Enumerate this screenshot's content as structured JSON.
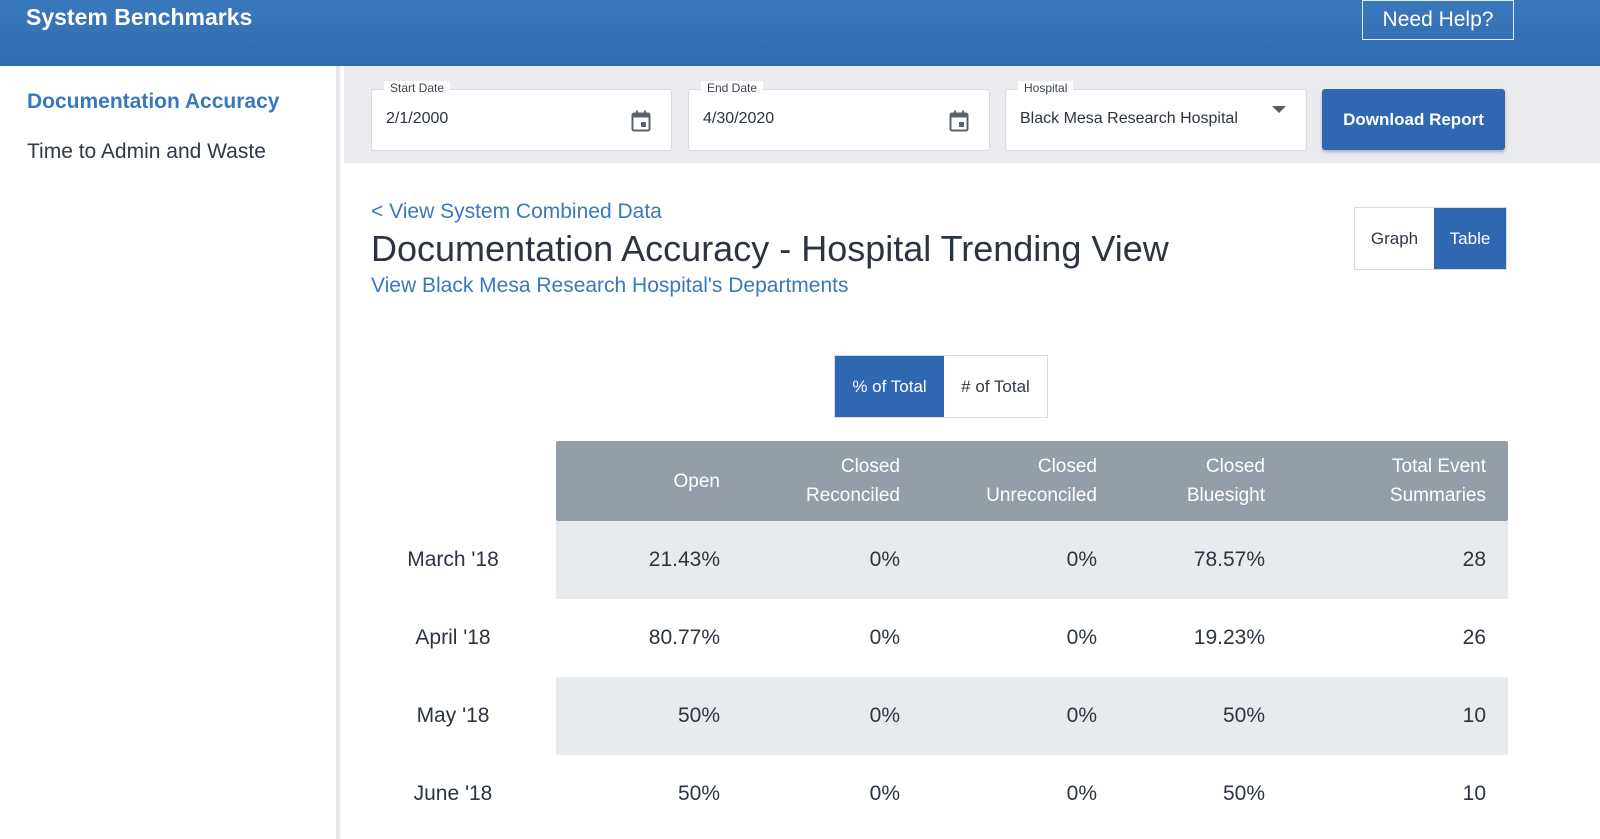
{
  "header": {
    "title": "System Benchmarks",
    "help_label": "Need Help?"
  },
  "sidebar": {
    "items": [
      {
        "label": "Documentation Accuracy",
        "active": true
      },
      {
        "label": "Time to Admin and Waste",
        "active": false
      }
    ]
  },
  "filters": {
    "start_date": {
      "label": "Start Date",
      "value": "2/1/2000",
      "icon": "calendar-icon"
    },
    "end_date": {
      "label": "End Date",
      "value": "4/30/2020",
      "icon": "calendar-icon"
    },
    "hospital": {
      "label": "Hospital",
      "value": "Black Mesa Research Hospital",
      "icon": "dropdown-caret-icon"
    },
    "download_label": "Download Report"
  },
  "main": {
    "back_link": "< View System Combined Data",
    "title": "Documentation Accuracy - Hospital Trending View",
    "departments_link": "View Black Mesa Research Hospital's Departments",
    "view_toggle": {
      "graph": "Graph",
      "table": "Table",
      "selected": "Table"
    },
    "metric_toggle": {
      "percent": "% of Total",
      "count": "# of Total",
      "selected": "% of Total"
    }
  },
  "table": {
    "columns": [
      [
        "Open"
      ],
      [
        "Closed",
        "Reconciled"
      ],
      [
        "Closed",
        "Unreconciled"
      ],
      [
        "Closed",
        "Bluesight"
      ],
      [
        "Total Event",
        "Summaries"
      ]
    ],
    "rows": [
      {
        "label": "March '18",
        "values": [
          "21.43%",
          "0%",
          "0%",
          "78.57%",
          "28"
        ]
      },
      {
        "label": "April '18",
        "values": [
          "80.77%",
          "0%",
          "0%",
          "19.23%",
          "26"
        ]
      },
      {
        "label": "May '18",
        "values": [
          "50%",
          "0%",
          "0%",
          "50%",
          "10"
        ]
      },
      {
        "label": "June '18",
        "values": [
          "50%",
          "0%",
          "0%",
          "50%",
          "10"
        ]
      }
    ]
  },
  "colors": {
    "brand_blue": "#2f67b1",
    "link_blue": "#3a78bd",
    "table_header": "#939ea8",
    "row_shade": "#e8ebee"
  }
}
